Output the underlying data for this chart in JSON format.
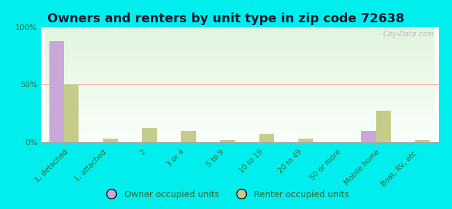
{
  "title": "Owners and renters by unit type in zip code 72638",
  "categories": [
    "1, detached",
    "1, attached",
    "2",
    "3 or 4",
    "5 to 9",
    "10 to 19",
    "20 to 49",
    "50 or more",
    "Mobile home",
    "Boat, RV, etc."
  ],
  "owner_values": [
    88,
    0,
    0,
    0,
    0,
    0,
    0,
    0,
    10,
    0
  ],
  "renter_values": [
    50,
    3,
    12,
    10,
    2,
    7,
    3,
    0,
    27,
    2
  ],
  "owner_color": "#c9a8d9",
  "renter_color": "#c5cb88",
  "background_color": "#00eeee",
  "yticks": [
    0,
    50,
    100
  ],
  "ylabels": [
    "0%",
    "50%",
    "100%"
  ],
  "title_fontsize": 13,
  "bar_width": 0.38,
  "legend_owner": "Owner occupied units",
  "legend_renter": "Renter occupied units",
  "watermark": "City-Data.com"
}
